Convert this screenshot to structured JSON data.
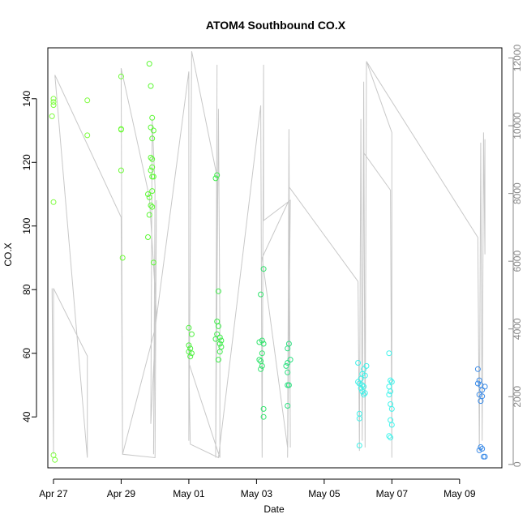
{
  "chart_data": {
    "type": "scatter",
    "title": "ATOM4 Southbound CO.X",
    "xlabel": "Date",
    "ylabel": "CO.X",
    "x_unit": "date",
    "xlim": [
      "2017-04-26 20:00",
      "2017-05-10 06:00"
    ],
    "ylim": [
      24,
      156
    ],
    "y2lim": [
      -100,
      12300
    ],
    "x_ticks": [
      {
        "value": "2017-04-27",
        "label": "Apr 27"
      },
      {
        "value": "2017-04-29",
        "label": "Apr 29"
      },
      {
        "value": "2017-05-01",
        "label": "May 01"
      },
      {
        "value": "2017-05-03",
        "label": "May 03"
      },
      {
        "value": "2017-05-05",
        "label": "May 05"
      },
      {
        "value": "2017-05-07",
        "label": "May 07"
      },
      {
        "value": "2017-05-09",
        "label": "May 09"
      }
    ],
    "y_ticks": [
      40,
      60,
      80,
      100,
      120,
      140
    ],
    "y2_ticks": [
      0,
      2000,
      4000,
      6000,
      8000,
      10000,
      12000
    ],
    "grid": false,
    "points": [
      {
        "x": "2017-04-27 00:00",
        "y": 140,
        "color": "#7cfc3c"
      },
      {
        "x": "2017-04-27 00:00",
        "y": 139,
        "color": "#7cfc3c"
      },
      {
        "x": "2017-04-27 00:00",
        "y": 138,
        "color": "#7cfc3c"
      },
      {
        "x": "2017-04-26 23:00",
        "y": 134.5,
        "color": "#7cfc3c"
      },
      {
        "x": "2017-04-27 00:00",
        "y": 107.5,
        "color": "#7cfc3c"
      },
      {
        "x": "2017-04-27 00:00",
        "y": 28,
        "color": "#7cfc3c"
      },
      {
        "x": "2017-04-27 01:00",
        "y": 26.5,
        "color": "#7cfc3c"
      },
      {
        "x": "2017-04-28 00:00",
        "y": 139.5,
        "color": "#7cfc3c"
      },
      {
        "x": "2017-04-28 00:00",
        "y": 128.5,
        "color": "#7cfc3c"
      },
      {
        "x": "2017-04-29 00:00",
        "y": 147,
        "color": "#6cfc36"
      },
      {
        "x": "2017-04-29 00:00",
        "y": 130.5,
        "color": "#6cfc36"
      },
      {
        "x": "2017-04-29 00:00",
        "y": 130.3,
        "color": "#6cfc36"
      },
      {
        "x": "2017-04-29 00:00",
        "y": 117.5,
        "color": "#6cfc36"
      },
      {
        "x": "2017-04-29 01:00",
        "y": 90,
        "color": "#6cfc36"
      },
      {
        "x": "2017-04-29 20:00",
        "y": 151,
        "color": "#5cf834"
      },
      {
        "x": "2017-04-29 21:00",
        "y": 144,
        "color": "#5cf834"
      },
      {
        "x": "2017-04-29 22:00",
        "y": 134,
        "color": "#5cf834"
      },
      {
        "x": "2017-04-29 21:00",
        "y": 131,
        "color": "#5cf834"
      },
      {
        "x": "2017-04-29 23:00",
        "y": 130,
        "color": "#5cf834"
      },
      {
        "x": "2017-04-29 22:00",
        "y": 127.5,
        "color": "#5cf834"
      },
      {
        "x": "2017-04-29 21:00",
        "y": 121.5,
        "color": "#5cf834"
      },
      {
        "x": "2017-04-29 22:00",
        "y": 121,
        "color": "#5cf834"
      },
      {
        "x": "2017-04-29 22:00",
        "y": 118.5,
        "color": "#5cf834"
      },
      {
        "x": "2017-04-29 21:00",
        "y": 117.5,
        "color": "#5cf834"
      },
      {
        "x": "2017-04-29 22:00",
        "y": 115.5,
        "color": "#5cf834"
      },
      {
        "x": "2017-04-29 23:00",
        "y": 115.5,
        "color": "#5cf834"
      },
      {
        "x": "2017-04-29 22:00",
        "y": 111,
        "color": "#5cf834"
      },
      {
        "x": "2017-04-29 19:00",
        "y": 110,
        "color": "#5cf834"
      },
      {
        "x": "2017-04-29 20:00",
        "y": 109,
        "color": "#5cf834"
      },
      {
        "x": "2017-04-29 21:00",
        "y": 106.5,
        "color": "#5cf834"
      },
      {
        "x": "2017-04-29 22:00",
        "y": 106,
        "color": "#5cf834"
      },
      {
        "x": "2017-04-29 20:00",
        "y": 103.5,
        "color": "#5cf834"
      },
      {
        "x": "2017-04-29 19:00",
        "y": 96.5,
        "color": "#5cf834"
      },
      {
        "x": "2017-04-29 23:00",
        "y": 88.5,
        "color": "#5cf834"
      },
      {
        "x": "2017-05-01 00:00",
        "y": 68,
        "color": "#4cf03c"
      },
      {
        "x": "2017-05-01 02:00",
        "y": 66,
        "color": "#4cf03c"
      },
      {
        "x": "2017-05-01 00:00",
        "y": 62.5,
        "color": "#4cf03c"
      },
      {
        "x": "2017-05-01 01:00",
        "y": 61.5,
        "color": "#4cf03c"
      },
      {
        "x": "2017-05-01 00:00",
        "y": 60.5,
        "color": "#4cf03c"
      },
      {
        "x": "2017-05-01 02:00",
        "y": 60,
        "color": "#4cf03c"
      },
      {
        "x": "2017-05-01 01:00",
        "y": 59,
        "color": "#4cf03c"
      },
      {
        "x": "2017-05-01 20:00",
        "y": 116,
        "color": "#3cec48"
      },
      {
        "x": "2017-05-01 19:00",
        "y": 115,
        "color": "#3cec48"
      },
      {
        "x": "2017-05-01 21:00",
        "y": 79.5,
        "color": "#3cec48"
      },
      {
        "x": "2017-05-01 20:00",
        "y": 70,
        "color": "#3cec48"
      },
      {
        "x": "2017-05-01 21:00",
        "y": 68.5,
        "color": "#3cec48"
      },
      {
        "x": "2017-05-01 20:00",
        "y": 66,
        "color": "#3cec48"
      },
      {
        "x": "2017-05-01 22:00",
        "y": 65,
        "color": "#3cec48"
      },
      {
        "x": "2017-05-01 19:00",
        "y": 64.5,
        "color": "#3cec48"
      },
      {
        "x": "2017-05-01 23:00",
        "y": 64,
        "color": "#3cec48"
      },
      {
        "x": "2017-05-01 22:00",
        "y": 63,
        "color": "#3cec48"
      },
      {
        "x": "2017-05-01 23:00",
        "y": 62,
        "color": "#3cec48"
      },
      {
        "x": "2017-05-01 22:00",
        "y": 60.5,
        "color": "#3cec48"
      },
      {
        "x": "2017-05-01 21:00",
        "y": 58,
        "color": "#3cec48"
      },
      {
        "x": "2017-05-03 05:00",
        "y": 86.5,
        "color": "#30e46c"
      },
      {
        "x": "2017-05-03 03:00",
        "y": 78.5,
        "color": "#30e46c"
      },
      {
        "x": "2017-05-03 04:00",
        "y": 64,
        "color": "#30e46c"
      },
      {
        "x": "2017-05-03 02:00",
        "y": 63.5,
        "color": "#30e46c"
      },
      {
        "x": "2017-05-03 05:00",
        "y": 63,
        "color": "#30e46c"
      },
      {
        "x": "2017-05-03 04:00",
        "y": 60,
        "color": "#30e46c"
      },
      {
        "x": "2017-05-03 02:00",
        "y": 58,
        "color": "#30e46c"
      },
      {
        "x": "2017-05-03 03:00",
        "y": 57.5,
        "color": "#30e46c"
      },
      {
        "x": "2017-05-03 04:00",
        "y": 56,
        "color": "#30e46c"
      },
      {
        "x": "2017-05-03 03:00",
        "y": 55,
        "color": "#30e46c"
      },
      {
        "x": "2017-05-03 05:00",
        "y": 42.5,
        "color": "#30e46c"
      },
      {
        "x": "2017-05-03 05:00",
        "y": 40,
        "color": "#30e46c"
      },
      {
        "x": "2017-05-03 23:00",
        "y": 63,
        "color": "#2ce080"
      },
      {
        "x": "2017-05-03 22:00",
        "y": 61.5,
        "color": "#2ce080"
      },
      {
        "x": "2017-05-04 00:00",
        "y": 58,
        "color": "#2ce080"
      },
      {
        "x": "2017-05-03 22:00",
        "y": 57,
        "color": "#2ce080"
      },
      {
        "x": "2017-05-03 21:00",
        "y": 56,
        "color": "#2ce080"
      },
      {
        "x": "2017-05-03 22:00",
        "y": 54,
        "color": "#2ce080"
      },
      {
        "x": "2017-05-03 23:00",
        "y": 50,
        "color": "#2ce080"
      },
      {
        "x": "2017-05-03 22:00",
        "y": 50,
        "color": "#2ce080"
      },
      {
        "x": "2017-05-03 22:00",
        "y": 43.5,
        "color": "#2ce080"
      },
      {
        "x": "2017-05-06 00:00",
        "y": 57,
        "color": "#40f0e8"
      },
      {
        "x": "2017-05-06 06:00",
        "y": 56,
        "color": "#40f0e8"
      },
      {
        "x": "2017-05-06 04:00",
        "y": 55,
        "color": "#40f0e8"
      },
      {
        "x": "2017-05-06 03:00",
        "y": 53.5,
        "color": "#40f0e8"
      },
      {
        "x": "2017-05-06 05:00",
        "y": 53,
        "color": "#40f0e8"
      },
      {
        "x": "2017-05-06 02:00",
        "y": 52,
        "color": "#40f0e8"
      },
      {
        "x": "2017-05-06 00:00",
        "y": 51,
        "color": "#40f0e8"
      },
      {
        "x": "2017-05-06 01:00",
        "y": 50.5,
        "color": "#40f0e8"
      },
      {
        "x": "2017-05-06 03:00",
        "y": 50,
        "color": "#40f0e8"
      },
      {
        "x": "2017-05-06 04:00",
        "y": 49.5,
        "color": "#40f0e8"
      },
      {
        "x": "2017-05-06 02:00",
        "y": 49,
        "color": "#40f0e8"
      },
      {
        "x": "2017-05-06 03:00",
        "y": 48,
        "color": "#40f0e8"
      },
      {
        "x": "2017-05-06 05:00",
        "y": 47.5,
        "color": "#40f0e8"
      },
      {
        "x": "2017-05-06 04:00",
        "y": 47,
        "color": "#40f0e8"
      },
      {
        "x": "2017-05-06 01:00",
        "y": 41,
        "color": "#40f0e8"
      },
      {
        "x": "2017-05-06 01:00",
        "y": 39.5,
        "color": "#40f0e8"
      },
      {
        "x": "2017-05-06 01:00",
        "y": 31,
        "color": "#40f0e8"
      },
      {
        "x": "2017-05-06 22:00",
        "y": 60,
        "color": "#40f4ec"
      },
      {
        "x": "2017-05-06 23:00",
        "y": 51.5,
        "color": "#40f4ec"
      },
      {
        "x": "2017-05-07 00:00",
        "y": 51,
        "color": "#40f4ec"
      },
      {
        "x": "2017-05-06 22:00",
        "y": 49.5,
        "color": "#40f4ec"
      },
      {
        "x": "2017-05-06 23:00",
        "y": 48,
        "color": "#40f4ec"
      },
      {
        "x": "2017-05-06 22:00",
        "y": 47,
        "color": "#40f4ec"
      },
      {
        "x": "2017-05-06 23:00",
        "y": 44,
        "color": "#40f4ec"
      },
      {
        "x": "2017-05-07 00:00",
        "y": 42.5,
        "color": "#40f4ec"
      },
      {
        "x": "2017-05-06 23:00",
        "y": 39,
        "color": "#40f4ec"
      },
      {
        "x": "2017-05-07 00:00",
        "y": 37.5,
        "color": "#40f4ec"
      },
      {
        "x": "2017-05-06 22:00",
        "y": 34,
        "color": "#40f4ec"
      },
      {
        "x": "2017-05-06 23:00",
        "y": 33.5,
        "color": "#40f4ec"
      },
      {
        "x": "2017-05-09 13:00",
        "y": 55,
        "color": "#3c8ce8"
      },
      {
        "x": "2017-05-09 14:00",
        "y": 51.5,
        "color": "#3c8ce8"
      },
      {
        "x": "2017-05-09 13:00",
        "y": 50.5,
        "color": "#3c8ce8"
      },
      {
        "x": "2017-05-09 15:00",
        "y": 50,
        "color": "#3c8ce8"
      },
      {
        "x": "2017-05-09 18:00",
        "y": 49.5,
        "color": "#3c8ce8"
      },
      {
        "x": "2017-05-09 16:00",
        "y": 48.5,
        "color": "#3c8ce8"
      },
      {
        "x": "2017-05-09 14:00",
        "y": 47,
        "color": "#3c8ce8"
      },
      {
        "x": "2017-05-09 16:00",
        "y": 46.5,
        "color": "#3c8ce8"
      },
      {
        "x": "2017-05-09 15:00",
        "y": 45,
        "color": "#3c8ce8"
      },
      {
        "x": "2017-05-09 15:00",
        "y": 30.5,
        "color": "#3c8ce8"
      },
      {
        "x": "2017-05-09 16:00",
        "y": 30,
        "color": "#3c8ce8"
      },
      {
        "x": "2017-05-09 14:00",
        "y": 29.5,
        "color": "#3c8ce8"
      },
      {
        "x": "2017-05-09 17:00",
        "y": 27.5,
        "color": "#3c8ce8"
      },
      {
        "x": "2017-05-09 18:00",
        "y": 27.5,
        "color": "#3c8ce8"
      }
    ],
    "line_series_right_axis": {
      "color": "#c8c8c8",
      "points": [
        [
          "2017-04-26 23:00",
          5200
        ],
        [
          "2017-04-27 00:00",
          300
        ],
        [
          "2017-04-27 00:00",
          5200
        ],
        [
          "2017-04-28 00:00",
          3200
        ],
        [
          "2017-04-28 00:00",
          200
        ],
        [
          "2017-04-27 01:00",
          11500
        ],
        [
          "2017-04-29 00:00",
          7300
        ],
        [
          "2017-04-29 01:00",
          300
        ],
        [
          "2017-04-29 00:00",
          11700
        ],
        [
          "2017-04-29 20:00",
          7900
        ],
        [
          "2017-04-30 01:00",
          4500
        ],
        [
          "2017-04-29 21:00",
          1200
        ],
        [
          "2017-04-29 22:00",
          10200
        ],
        [
          "2017-04-30 00:00",
          8200
        ],
        [
          "2017-04-29 23:00",
          300
        ],
        [
          "2017-04-30 01:00",
          7800
        ],
        [
          "2017-04-30 00:00",
          200
        ],
        [
          "2017-04-29 01:00",
          300
        ],
        [
          "2017-04-30 00:00",
          4000
        ],
        [
          "2017-05-01 00:00",
          11600
        ],
        [
          "2017-05-01 00:00",
          700
        ],
        [
          "2017-05-01 02:00",
          12200
        ],
        [
          "2017-05-01 20:00",
          8500
        ],
        [
          "2017-05-01 19:00",
          400
        ],
        [
          "2017-05-01 20:00",
          11800
        ],
        [
          "2017-05-01 19:00",
          200
        ],
        [
          "2017-05-01 21:00",
          10500
        ],
        [
          "2017-05-01 22:00",
          4000
        ],
        [
          "2017-05-01 22:00",
          200
        ],
        [
          "2017-05-01 00:00",
          3000
        ],
        [
          "2017-05-01 01:00",
          600
        ],
        [
          "2017-05-01 21:00",
          200
        ],
        [
          "2017-05-03 03:00",
          10600
        ],
        [
          "2017-05-03 04:00",
          200
        ],
        [
          "2017-05-03 05:00",
          11800
        ],
        [
          "2017-05-03 05:00",
          7200
        ],
        [
          "2017-05-04 00:00",
          7800
        ],
        [
          "2017-05-03 22:00",
          200
        ],
        [
          "2017-05-03 23:00",
          9900
        ],
        [
          "2017-05-04 00:00",
          500
        ],
        [
          "2017-05-03 23:00",
          7800
        ],
        [
          "2017-05-03 04:00",
          6100
        ],
        [
          "2017-05-03 22:00",
          500
        ],
        [
          "2017-05-03 23:00",
          8200
        ],
        [
          "2017-05-06 00:00",
          5400
        ],
        [
          "2017-05-06 01:00",
          400
        ],
        [
          "2017-05-06 02:00",
          10200
        ],
        [
          "2017-05-06 03:00",
          700
        ],
        [
          "2017-05-06 04:00",
          11300
        ],
        [
          "2017-05-06 05:00",
          500
        ],
        [
          "2017-05-06 06:00",
          11900
        ],
        [
          "2017-05-06 05:00",
          800
        ],
        [
          "2017-05-06 04:00",
          9200
        ],
        [
          "2017-05-06 23:00",
          8100
        ],
        [
          "2017-05-07 00:00",
          200
        ],
        [
          "2017-05-07 00:00",
          9800
        ],
        [
          "2017-05-06 06:00",
          11900
        ],
        [
          "2017-05-09 13:00",
          6700
        ],
        [
          "2017-05-09 14:00",
          400
        ],
        [
          "2017-05-09 15:00",
          9500
        ],
        [
          "2017-05-09 16:00",
          700
        ],
        [
          "2017-05-09 17:00",
          9800
        ],
        [
          "2017-05-09 18:00",
          6200
        ],
        [
          "2017-05-09 18:00",
          9600
        ]
      ]
    }
  }
}
